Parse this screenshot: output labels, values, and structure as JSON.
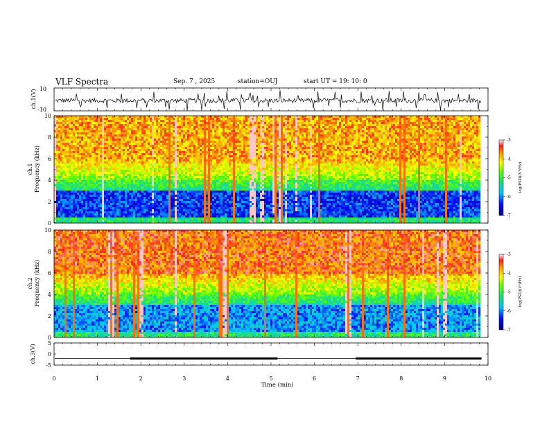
{
  "header": {
    "title": "VLF Spectra",
    "date": "Sep. 7 , 2025",
    "station": "station=OUJ",
    "start": "start  UT =   19: 10: 0"
  },
  "colors": {
    "background": "#ffffff",
    "axis": "#000000",
    "spectrogram_low": "#00008b",
    "spectrogram_high": "#ff2020"
  },
  "colorbar_ticks": [
    "-3",
    "-4",
    "-5",
    "-6",
    "-7"
  ],
  "chart_data": [
    {
      "type": "line",
      "name": "ch1 waveform",
      "ylabel": "ch.1(V)",
      "ylim": [
        -10,
        10
      ],
      "yticks": [
        "10",
        "-10"
      ],
      "baseline_value": -1,
      "xlim": [
        0,
        10
      ]
    },
    {
      "type": "heatmap",
      "name": "ch1 spectrogram",
      "ylabel_line1": "ch.1",
      "ylabel_line2": "Frequency (kHz)",
      "ylim": [
        0,
        10
      ],
      "yticks": [
        "0",
        "2",
        "4",
        "6",
        "8",
        "10"
      ],
      "xlim": [
        0,
        10
      ],
      "data_extent_min": 9.85,
      "colorbar_label": "log(PSD)(V²/Hz)",
      "colorbar_range": [
        -7,
        -3
      ]
    },
    {
      "type": "heatmap",
      "name": "ch2 spectrogram",
      "ylabel_line1": "ch.2",
      "ylabel_line2": "Frequency (kHz)",
      "ylim": [
        0,
        10
      ],
      "yticks": [
        "0",
        "2",
        "4",
        "6",
        "8",
        "10"
      ],
      "xlim": [
        0,
        10
      ],
      "data_extent_min": 9.85,
      "colorbar_label": "log(PSD)(V²/Hz)",
      "colorbar_range": [
        -7,
        -3
      ]
    },
    {
      "type": "line",
      "name": "ch3 trace",
      "ylabel": "ch.3(V)",
      "ylim": [
        -5,
        5
      ],
      "yticks": [
        "5",
        "0",
        "-5"
      ],
      "level_value": -2,
      "thick_segments": [
        [
          1.75,
          5.15
        ],
        [
          6.95,
          9.85
        ]
      ],
      "xlim": [
        0,
        10
      ],
      "xlabel": "Time  (min)",
      "xticks": [
        "0",
        "1",
        "2",
        "3",
        "4",
        "5",
        "6",
        "7",
        "8",
        "9",
        "10"
      ]
    }
  ]
}
